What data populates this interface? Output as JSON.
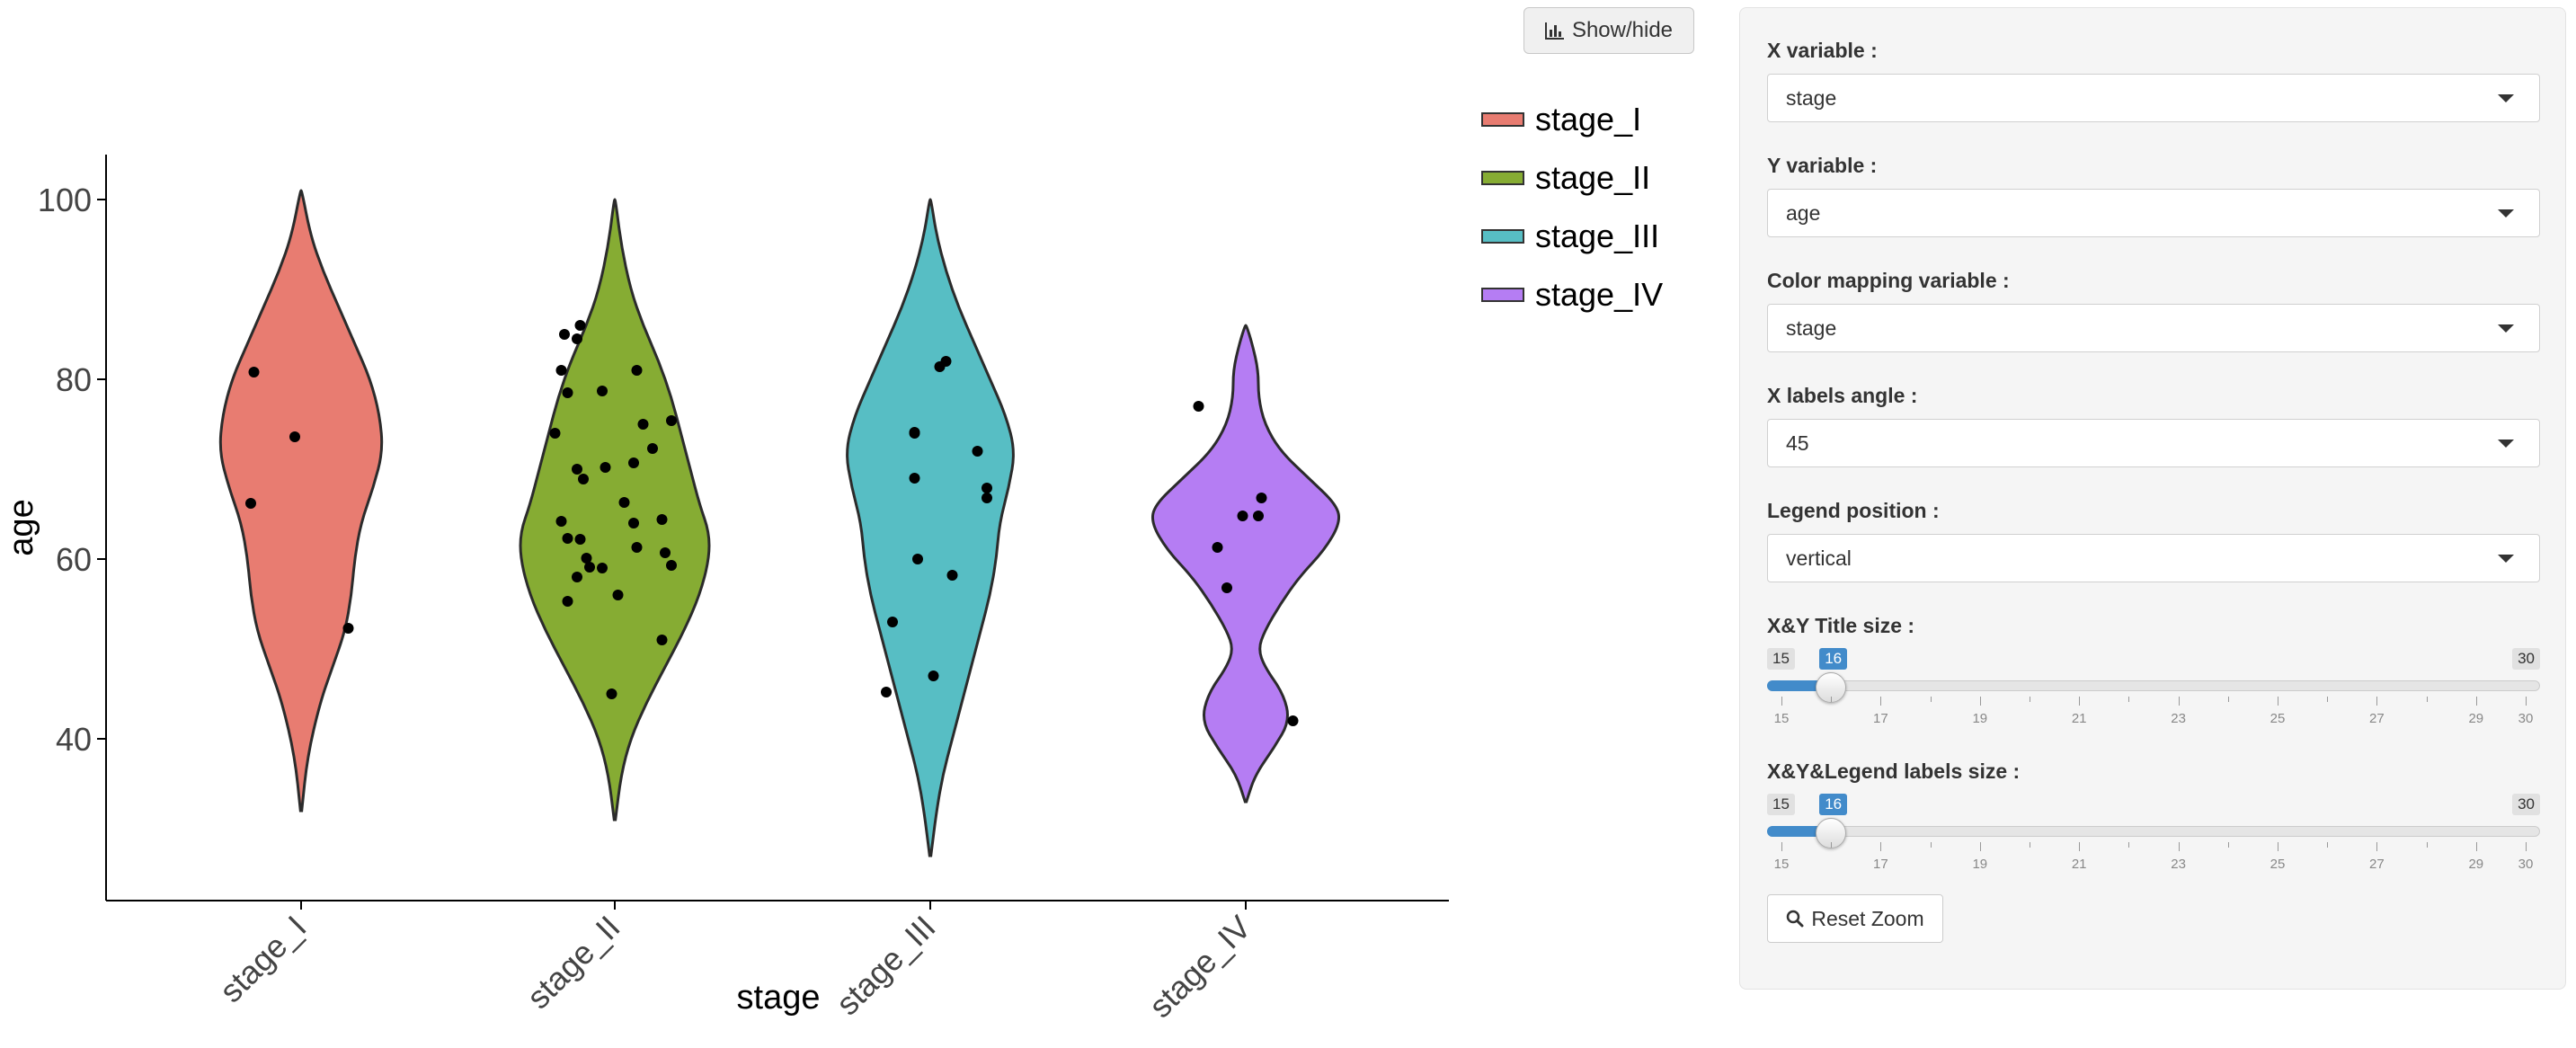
{
  "chart_data": {
    "type": "violin",
    "xlabel": "stage",
    "ylabel": "age",
    "ylim": [
      20,
      105
    ],
    "yticks": [
      40,
      60,
      80,
      100
    ],
    "categories": [
      "stage_I",
      "stage_II",
      "stage_III",
      "stage_IV"
    ],
    "tick_label_angle": 45,
    "legend_position": "right",
    "grid": false,
    "series": [
      {
        "name": "stage_I",
        "color": "#E87C71",
        "points": [
          [
            -0.15,
            80.8
          ],
          [
            -0.02,
            73.6
          ],
          [
            -0.16,
            66.2
          ],
          [
            0.15,
            52.3
          ]
        ],
        "ymin": 32,
        "ymax": 101,
        "shape": [
          [
            32,
            0.002
          ],
          [
            38,
            0.02
          ],
          [
            44,
            0.06
          ],
          [
            48,
            0.1
          ],
          [
            52,
            0.14
          ],
          [
            56,
            0.16
          ],
          [
            60,
            0.17
          ],
          [
            64,
            0.19
          ],
          [
            68,
            0.23
          ],
          [
            72,
            0.26
          ],
          [
            76,
            0.25
          ],
          [
            80,
            0.22
          ],
          [
            84,
            0.17
          ],
          [
            88,
            0.12
          ],
          [
            92,
            0.07
          ],
          [
            96,
            0.03
          ],
          [
            101,
            0.002
          ]
        ]
      },
      {
        "name": "stage_II",
        "color": "#86AC33",
        "points": [
          [
            -0.16,
            85
          ],
          [
            -0.12,
            84.5
          ],
          [
            -0.11,
            86
          ],
          [
            -0.17,
            81
          ],
          [
            0.07,
            81
          ],
          [
            -0.15,
            78.5
          ],
          [
            -0.04,
            78.7
          ],
          [
            -0.19,
            74
          ],
          [
            0.09,
            75
          ],
          [
            0.18,
            75.4
          ],
          [
            0.12,
            72.3
          ],
          [
            -0.12,
            70
          ],
          [
            -0.03,
            70.2
          ],
          [
            0.06,
            70.7
          ],
          [
            -0.1,
            68.9
          ],
          [
            0.03,
            66.3
          ],
          [
            -0.17,
            64.2
          ],
          [
            0.15,
            64.4
          ],
          [
            0.06,
            64
          ],
          [
            -0.15,
            62.3
          ],
          [
            -0.11,
            62.2
          ],
          [
            0.07,
            61.3
          ],
          [
            0.16,
            60.7
          ],
          [
            -0.09,
            60.1
          ],
          [
            -0.08,
            59.1
          ],
          [
            -0.04,
            59
          ],
          [
            0.18,
            59.3
          ],
          [
            -0.12,
            58
          ],
          [
            0.01,
            56
          ],
          [
            -0.15,
            55.3
          ],
          [
            0.15,
            51
          ],
          [
            -0.01,
            45
          ]
        ],
        "ymin": 31,
        "ymax": 100,
        "shape": [
          [
            31,
            0.002
          ],
          [
            36,
            0.02
          ],
          [
            40,
            0.05
          ],
          [
            44,
            0.1
          ],
          [
            48,
            0.16
          ],
          [
            52,
            0.22
          ],
          [
            56,
            0.27
          ],
          [
            60,
            0.3
          ],
          [
            63,
            0.3
          ],
          [
            66,
            0.27
          ],
          [
            70,
            0.24
          ],
          [
            74,
            0.21
          ],
          [
            78,
            0.18
          ],
          [
            82,
            0.14
          ],
          [
            86,
            0.09
          ],
          [
            90,
            0.05
          ],
          [
            95,
            0.02
          ],
          [
            100,
            0.002
          ]
        ]
      },
      {
        "name": "stage_III",
        "color": "#57BEC4",
        "points": [
          [
            0.03,
            81.4
          ],
          [
            0.05,
            82
          ],
          [
            -0.05,
            74.1
          ],
          [
            -0.05,
            74
          ],
          [
            0.15,
            72
          ],
          [
            -0.05,
            69
          ],
          [
            0.18,
            67.9
          ],
          [
            0.18,
            66.8
          ],
          [
            -0.04,
            60
          ],
          [
            0.07,
            58.2
          ],
          [
            -0.12,
            53
          ],
          [
            0.01,
            47
          ],
          [
            -0.14,
            45.2
          ]
        ],
        "ymin": 27,
        "ymax": 100,
        "shape": [
          [
            27,
            0.002
          ],
          [
            32,
            0.02
          ],
          [
            36,
            0.04
          ],
          [
            40,
            0.07
          ],
          [
            44,
            0.1
          ],
          [
            48,
            0.13
          ],
          [
            52,
            0.16
          ],
          [
            56,
            0.19
          ],
          [
            60,
            0.21
          ],
          [
            64,
            0.22
          ],
          [
            68,
            0.25
          ],
          [
            72,
            0.27
          ],
          [
            76,
            0.24
          ],
          [
            80,
            0.19
          ],
          [
            84,
            0.14
          ],
          [
            88,
            0.09
          ],
          [
            92,
            0.05
          ],
          [
            96,
            0.02
          ],
          [
            100,
            0.002
          ]
        ]
      },
      {
        "name": "stage_IV",
        "color": "#B57DF3",
        "points": [
          [
            -0.15,
            77
          ],
          [
            0.05,
            66.8
          ],
          [
            -0.01,
            64.8
          ],
          [
            0.04,
            64.8
          ],
          [
            -0.09,
            61.3
          ],
          [
            -0.06,
            56.8
          ],
          [
            0.15,
            42
          ]
        ],
        "ymin": 33,
        "ymax": 86,
        "shape": [
          [
            33,
            0.002
          ],
          [
            36,
            0.03
          ],
          [
            39,
            0.09
          ],
          [
            42,
            0.14
          ],
          [
            45,
            0.12
          ],
          [
            48,
            0.06
          ],
          [
            50,
            0.04
          ],
          [
            52,
            0.06
          ],
          [
            55,
            0.11
          ],
          [
            58,
            0.17
          ],
          [
            61,
            0.25
          ],
          [
            64,
            0.3
          ],
          [
            66,
            0.29
          ],
          [
            69,
            0.2
          ],
          [
            72,
            0.11
          ],
          [
            75,
            0.06
          ],
          [
            78,
            0.04
          ],
          [
            81,
            0.04
          ],
          [
            84,
            0.02
          ],
          [
            86,
            0.002
          ]
        ]
      }
    ]
  },
  "toolbar": {
    "showhide_icon": "bar-chart-icon",
    "showhide_label": "Show/hide"
  },
  "controls": {
    "x_variable": {
      "label": "X variable :",
      "value": "stage"
    },
    "y_variable": {
      "label": "Y variable :",
      "value": "age"
    },
    "color_mapping": {
      "label": "Color mapping variable :",
      "value": "stage"
    },
    "x_labels_angle": {
      "label": "X labels angle :",
      "value": "45"
    },
    "legend_position": {
      "label": "Legend position :",
      "value": "vertical"
    },
    "title_size": {
      "label": "X&Y Title size :",
      "min": "15",
      "max": "30",
      "value": "16",
      "min_val": 15,
      "max_val": 30,
      "current": 16
    },
    "labels_size": {
      "label": "X&Y&Legend labels size :",
      "min": "15",
      "max": "30",
      "value": "16",
      "min_val": 15,
      "max_val": 30,
      "current": 16
    },
    "slider_tick_labels": [
      "15",
      "17",
      "19",
      "21",
      "23",
      "25",
      "27",
      "29",
      "30"
    ],
    "reset_zoom": {
      "icon": "search-icon",
      "label": "Reset Zoom"
    },
    "accent_color": "#428bca"
  }
}
